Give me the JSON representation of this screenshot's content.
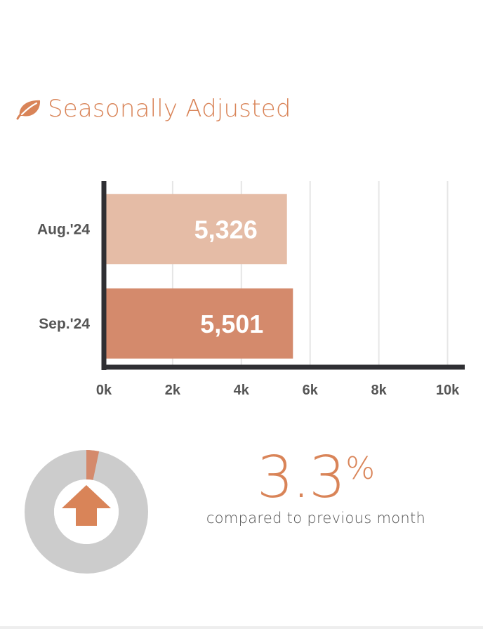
{
  "header": {
    "title": "Seasonally Adjusted",
    "icon": "leaf-icon"
  },
  "colors": {
    "accent": "#d98458",
    "bar_previous": "#e5bca6",
    "bar_current": "#d48a6c",
    "axis": "#2f2f33",
    "grid": "#e6e6e6",
    "donut_track": "#cccccc",
    "donut_slice": "#d48a6c"
  },
  "chart_data": {
    "type": "bar",
    "orientation": "horizontal",
    "categories": [
      "Aug.'24",
      "Sep.'24"
    ],
    "values": [
      5326,
      5501
    ],
    "value_labels": [
      "5,326",
      "5,501"
    ],
    "xlim": [
      0,
      10500
    ],
    "xticks": [
      0,
      2000,
      4000,
      6000,
      8000,
      10000
    ],
    "xtick_labels": [
      "0k",
      "2k",
      "4k",
      "6k",
      "8k",
      "10k"
    ],
    "grid": true,
    "title": "",
    "xlabel": "",
    "ylabel": ""
  },
  "change": {
    "value": "3.3",
    "unit": "%",
    "direction": "up",
    "fraction": 0.033,
    "caption": "compared to previous month",
    "icon": "arrow-up-icon"
  }
}
